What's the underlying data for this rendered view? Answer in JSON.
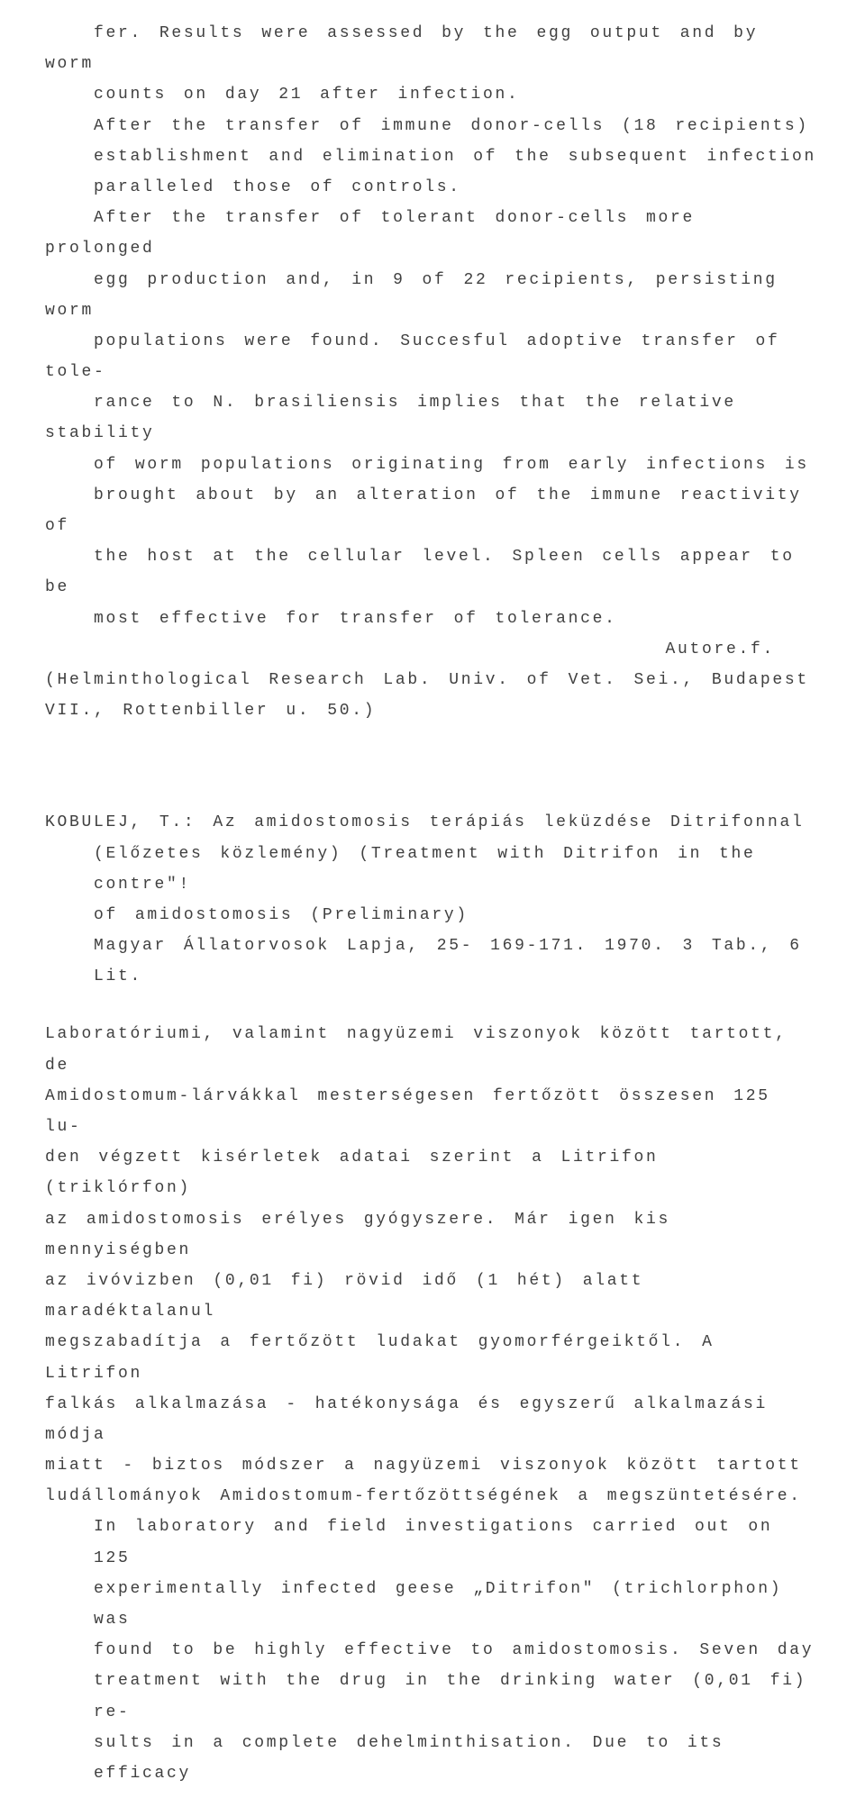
{
  "entry1": {
    "p1_line1": "fer. Results were assessed by the egg output and by worm",
    "p1_line2": "counts on day 21 after infection.",
    "p2_line1": "After the transfer of immune donor-cells (18 recipients)",
    "p2_line2": "establishment and elimination of the subsequent infection",
    "p2_line3": "paralleled those of controls.",
    "p3_line1": "After the transfer of tolerant donor-cells more prolonged",
    "p3_line2": "egg production and, in 9 of 22 recipients, persisting worm",
    "p3_line3": "populations were found. Succesful adoptive transfer of tole-",
    "p3_line4": "rance to N. brasiliensis implies that the relative stability",
    "p3_line5": "of worm populations originating from early infections is",
    "p3_line6": "brought about by an alteration of the immune reactivity of",
    "p3_line7": "the host at the cellular level. Spleen cells appear to be",
    "p3_line8": "most effective for transfer of tolerance.",
    "autoref": "Autore.f.",
    "affiliation1": "(Helminthological Research Lab. Univ. of Vet. Sei., Budapest",
    "affiliation2": "VII., Rottenbiller u. 50.)"
  },
  "entry2": {
    "citation_line1": "KOBULEJ, T.: Az amidostomosis terápiás leküzdése Ditrifonnal",
    "citation_line2": "(Előzetes közlemény) (Treatment with Ditrifon in the contre\"!",
    "citation_line3": "of amidostomosis (Preliminary)",
    "citation_line4": "Magyar Állatorvosok Lapja, 25- 169-171. 1970. 3 Tab., 6 Lit.",
    "body_line1": "Laboratóriumi, valamint nagyüzemi viszonyok között tartott, de",
    "body_line2": "Amidostomum-lárvákkal mesterségesen fertőzött összesen 125 lu-",
    "body_line3": "den végzett kisérletek adatai szerint a Litrifon (triklórfon)",
    "body_line4": "az amidostomosis erélyes gyógyszere. Már igen kis mennyiségben",
    "body_line5": "az ivóvizben (0,01 fi) rövid idő (1 hét) alatt maradéktalanul",
    "body_line6": "megszabadítja a fertőzött ludakat gyomorférgeiktől. A Litrifon",
    "body_line7": "falkás alkalmazása - hatékonysága és egyszerű alkalmazási módja",
    "body_line8": "miatt - biztos módszer a nagyüzemi viszonyok között tartott",
    "body_line9": "ludállományok Amidostomum-fertőzöttségének a megszüntetésére.",
    "eng_line1": "In laboratory and field investigations carried out on 125",
    "eng_line2": "experimentally infected geese „Ditrifon\" (trichlorphon) was",
    "eng_line3": "found to be highly effective to amidostomosis. Seven day",
    "eng_line4": "treatment with the drug in the drinking water (0,01 fi) re-",
    "eng_line5": "sults in a complete dehelminthisation. Due to its efficacy"
  },
  "colors": {
    "text": "#404040",
    "background": "#ffffff"
  },
  "typography": {
    "font_family": "Courier New",
    "font_size": 18,
    "line_height": 1.9,
    "letter_spacing": "0.15em"
  }
}
